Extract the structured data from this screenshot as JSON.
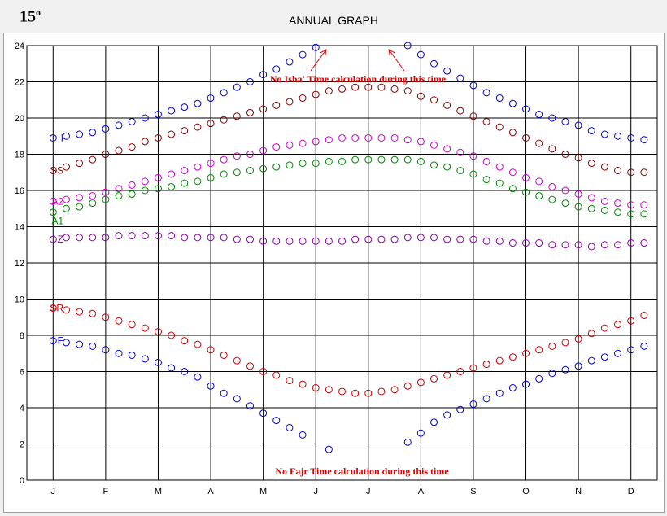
{
  "header": {
    "latitude_base": "15",
    "latitude_sup": "o",
    "title": "ANNUAL GRAPH"
  },
  "chart_data": {
    "type": "scatter",
    "title": "ANNUAL GRAPH",
    "xlabel": "",
    "ylabel": "",
    "ylim": [
      0,
      24
    ],
    "yticks": [
      0,
      2,
      4,
      6,
      8,
      10,
      12,
      14,
      16,
      18,
      20,
      22,
      24
    ],
    "months": [
      "J",
      "F",
      "M",
      "A",
      "M",
      "J",
      "J",
      "A",
      "S",
      "O",
      "N",
      "D"
    ],
    "grid": true,
    "annotations": {
      "isha": "No Isha' Time calculation during this time",
      "fajr": "No Fajr Time calculation during this time"
    },
    "series": [
      {
        "name": "I",
        "color": "#0000cc",
        "values": [
          18.9,
          19.0,
          19.1,
          19.2,
          19.4,
          19.6,
          19.8,
          20.0,
          20.2,
          20.4,
          20.6,
          20.8,
          21.1,
          21.4,
          21.7,
          22.0,
          22.4,
          22.7,
          23.1,
          23.5,
          23.9,
          null,
          null,
          null,
          null,
          null,
          null,
          24.0,
          23.5,
          23.0,
          22.6,
          22.2,
          21.8,
          21.4,
          21.1,
          20.8,
          20.5,
          20.2,
          20.0,
          19.8,
          19.6,
          19.3,
          19.1,
          19.0,
          18.9,
          18.8,
          18.8,
          18.8
        ]
      },
      {
        "name": "SS",
        "color": "#880000",
        "values": [
          17.1,
          17.3,
          17.5,
          17.7,
          18.0,
          18.2,
          18.4,
          18.7,
          18.9,
          19.1,
          19.3,
          19.5,
          19.7,
          19.9,
          20.1,
          20.3,
          20.5,
          20.7,
          20.9,
          21.1,
          21.3,
          21.5,
          21.6,
          21.7,
          21.7,
          21.7,
          21.6,
          21.5,
          21.2,
          21.0,
          20.7,
          20.4,
          20.1,
          19.8,
          19.5,
          19.2,
          18.9,
          18.6,
          18.3,
          18.0,
          17.8,
          17.5,
          17.3,
          17.1,
          17.0,
          17.0,
          17.0,
          17.0
        ]
      },
      {
        "name": "A2",
        "color": "#cc00cc",
        "values": [
          15.4,
          15.5,
          15.6,
          15.7,
          15.9,
          16.1,
          16.3,
          16.5,
          16.7,
          16.9,
          17.1,
          17.3,
          17.5,
          17.7,
          17.9,
          18.0,
          18.2,
          18.4,
          18.5,
          18.6,
          18.7,
          18.8,
          18.9,
          18.9,
          18.9,
          18.9,
          18.9,
          18.8,
          18.7,
          18.5,
          18.3,
          18.1,
          17.9,
          17.6,
          17.3,
          17.0,
          16.7,
          16.5,
          16.2,
          16.0,
          15.8,
          15.6,
          15.4,
          15.3,
          15.2,
          15.2,
          15.2,
          15.2
        ]
      },
      {
        "name": "A1",
        "color": "#008800",
        "values": [
          14.8,
          15.0,
          15.1,
          15.3,
          15.5,
          15.7,
          15.8,
          16.0,
          16.1,
          16.2,
          16.4,
          16.5,
          16.7,
          16.9,
          17.0,
          17.1,
          17.2,
          17.3,
          17.4,
          17.5,
          17.5,
          17.6,
          17.6,
          17.7,
          17.7,
          17.7,
          17.7,
          17.7,
          17.6,
          17.4,
          17.3,
          17.1,
          16.9,
          16.6,
          16.4,
          16.1,
          15.9,
          15.7,
          15.5,
          15.3,
          15.1,
          15.0,
          14.9,
          14.8,
          14.7,
          14.7,
          14.7,
          14.8
        ]
      },
      {
        "name": "Z",
        "color": "#8800aa",
        "values": [
          13.3,
          13.4,
          13.4,
          13.4,
          13.4,
          13.5,
          13.5,
          13.5,
          13.5,
          13.5,
          13.4,
          13.4,
          13.4,
          13.4,
          13.3,
          13.3,
          13.2,
          13.2,
          13.2,
          13.2,
          13.2,
          13.2,
          13.2,
          13.3,
          13.3,
          13.3,
          13.3,
          13.4,
          13.4,
          13.4,
          13.3,
          13.3,
          13.3,
          13.2,
          13.2,
          13.1,
          13.1,
          13.1,
          13.0,
          13.0,
          13.0,
          12.9,
          13.0,
          13.0,
          13.1,
          13.1,
          13.2,
          13.2
        ]
      },
      {
        "name": "SR",
        "color": "#cc0000",
        "values": [
          9.5,
          9.4,
          9.3,
          9.2,
          9.0,
          8.8,
          8.6,
          8.4,
          8.2,
          8.0,
          7.7,
          7.5,
          7.2,
          6.9,
          6.6,
          6.3,
          6.0,
          5.8,
          5.5,
          5.3,
          5.1,
          5.0,
          4.9,
          4.8,
          4.8,
          4.9,
          5.0,
          5.2,
          5.4,
          5.6,
          5.8,
          6.0,
          6.2,
          6.4,
          6.6,
          6.8,
          7.0,
          7.2,
          7.4,
          7.6,
          7.8,
          8.1,
          8.4,
          8.6,
          8.8,
          9.1,
          9.3,
          9.4
        ]
      },
      {
        "name": "F",
        "color": "#0000cc",
        "values": [
          7.7,
          7.6,
          7.5,
          7.4,
          7.2,
          7.0,
          6.9,
          6.7,
          6.5,
          6.2,
          6.0,
          5.7,
          5.2,
          4.8,
          4.5,
          4.1,
          3.7,
          3.3,
          2.9,
          2.5,
          null,
          1.7,
          null,
          null,
          null,
          null,
          null,
          2.1,
          2.6,
          3.2,
          3.6,
          3.9,
          4.2,
          4.5,
          4.8,
          5.1,
          5.3,
          5.6,
          5.9,
          6.1,
          6.3,
          6.6,
          6.8,
          7.0,
          7.2,
          7.4,
          7.5,
          7.6
        ]
      }
    ]
  }
}
